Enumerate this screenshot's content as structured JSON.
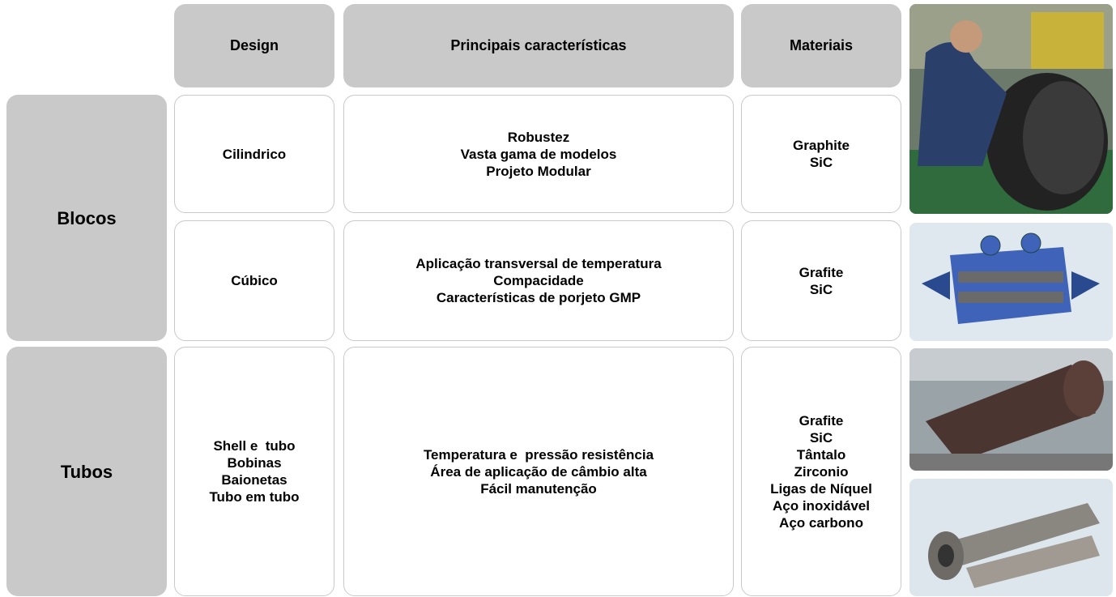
{
  "table": {
    "header": [
      "Design",
      "Principais características",
      "Materiais"
    ],
    "groups": [
      {
        "label": "Blocos",
        "rows": [
          {
            "design": [
              "Cilindrico"
            ],
            "features": [
              "Robustez",
              "Vasta gama de modelos",
              "Projeto Modular"
            ],
            "materials": [
              "Graphite",
              "SiC"
            ]
          },
          {
            "design": [
              "Cúbico"
            ],
            "features": [
              "Aplicação transversal de temperatura",
              "Compacidade",
              "Características de porjeto GMP"
            ],
            "materials": [
              "Grafite",
              "SiC"
            ]
          }
        ]
      },
      {
        "label": "Tubos",
        "rows": [
          {
            "design": [
              "Shell e  tubo",
              "Bobinas",
              "Baionetas",
              "Tubo em tubo"
            ],
            "features": [
              "Temperatura e  pressão resistência",
              "Área de aplicação de câmbio alta",
              "Fácil manutenção"
            ],
            "materials": [
              "Grafite",
              "SiC",
              "Tântalo",
              "Zirconio",
              "Ligas de Níquel",
              "Aço inoxidável",
              "Aço carbono"
            ]
          }
        ]
      }
    ]
  }
}
